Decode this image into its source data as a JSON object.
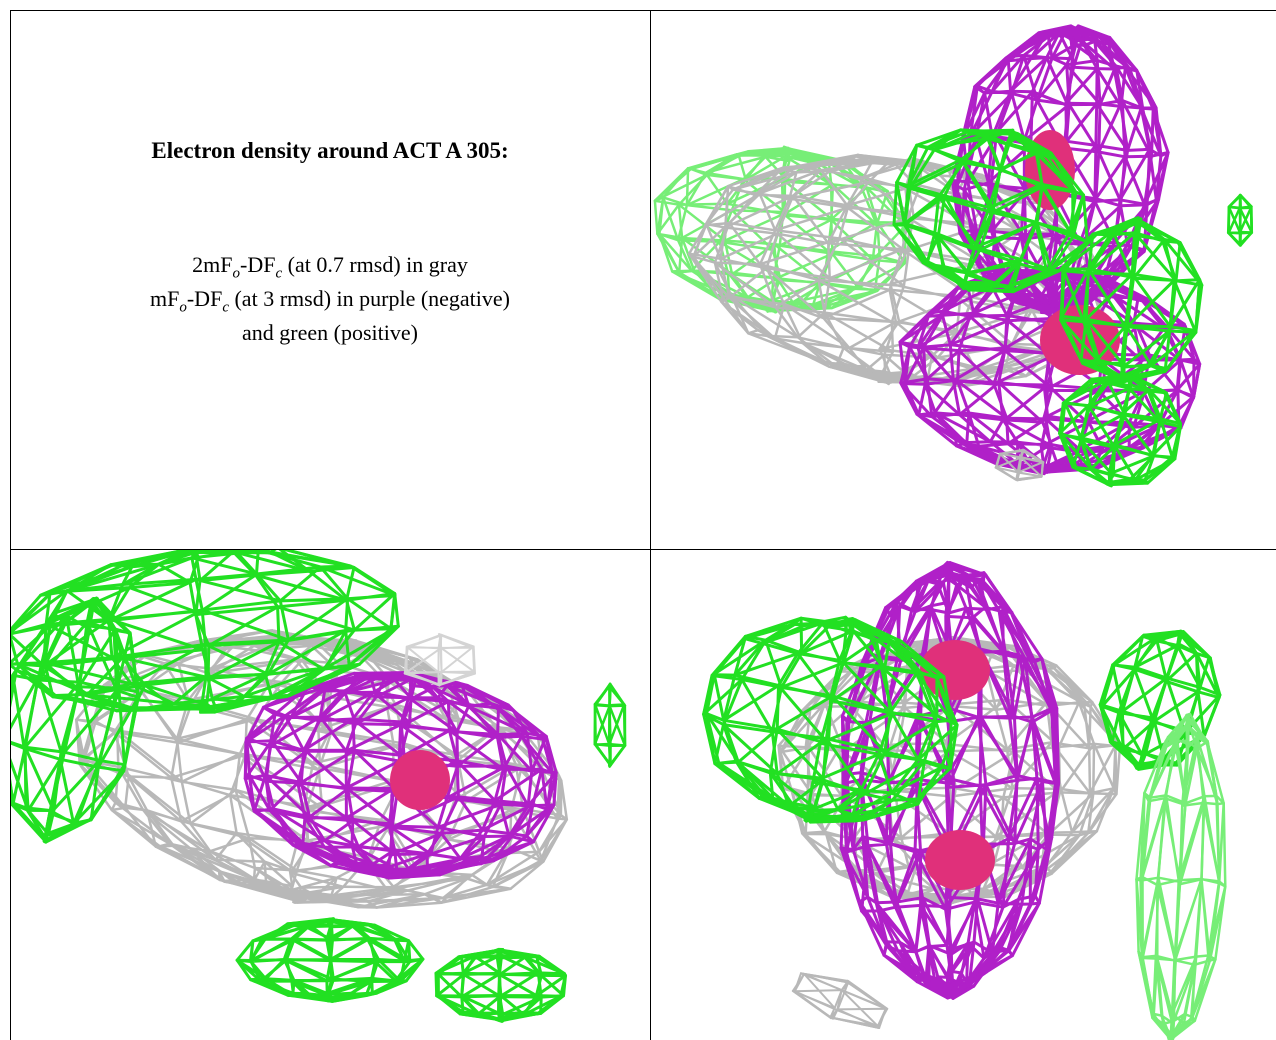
{
  "figure": {
    "title": "Electron density around ACT A 305:",
    "legend_lines": [
      [
        "2mF",
        "o",
        "-DF",
        "c",
        " (at 0.7 rmsd) in gray"
      ],
      [
        "mF",
        "o",
        "-DF",
        "c",
        " (at 3 rmsd) in purple (negative)"
      ],
      [
        "and green (positive)"
      ]
    ]
  }
}
